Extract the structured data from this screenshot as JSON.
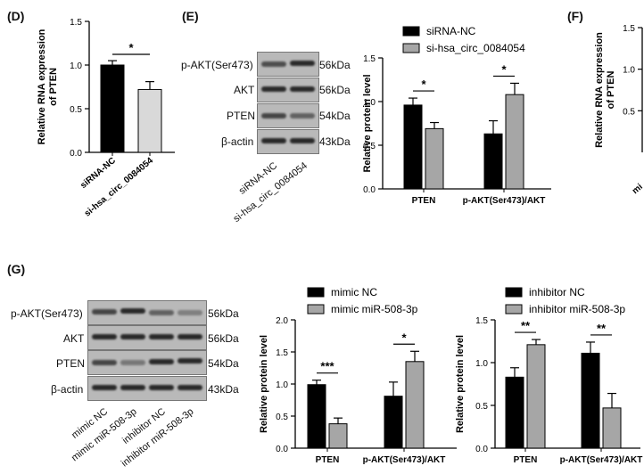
{
  "panels": {
    "D": "(D)",
    "E": "(E)",
    "F": "(F)",
    "G": "(G)"
  },
  "panel_D": {
    "chart_data": {
      "type": "bar",
      "categories": [
        "siRNA-NC",
        "si-hsa_circ_0084054"
      ],
      "values": [
        1.0,
        0.72
      ],
      "errors": [
        0.05,
        0.09
      ],
      "colors": [
        "#000000",
        "#d9d9d9"
      ],
      "ylabel": "Relative RNA expression\nof PTEN",
      "ylabel_lines": [
        "Relative RNA expression",
        "of PTEN"
      ],
      "ylim": [
        0,
        1.5
      ],
      "yticks": [
        "0.0",
        "0.5",
        "1.0",
        "1.5"
      ],
      "annotations": [
        "*"
      ]
    }
  },
  "panel_E": {
    "blot_labels": [
      "p-AKT(Ser473)",
      "AKT",
      "PTEN",
      "β-actin"
    ],
    "kda": [
      "56kDa",
      "56kDa",
      "54kDa",
      "43kDa"
    ],
    "lanes": [
      "siRNA-NC",
      "si-hsa_circ_0084054"
    ],
    "chart_data": {
      "type": "bar",
      "categories": [
        "PTEN",
        "p-AKT(Ser473)/AKT"
      ],
      "series": [
        {
          "name": "siRNA-NC",
          "values": [
            0.96,
            0.63
          ],
          "errors": [
            0.08,
            0.15
          ],
          "color": "#000000"
        },
        {
          "name": "si-hsa_circ_0084054",
          "values": [
            0.69,
            1.08
          ],
          "errors": [
            0.07,
            0.13
          ],
          "color": "#a6a6a6"
        }
      ],
      "ylabel": "Relative protein level",
      "ylim": [
        0,
        1.5
      ],
      "yticks": [
        "0.0",
        "0.5",
        "1.0",
        "1.5"
      ],
      "annotations": [
        "*",
        "*"
      ]
    }
  },
  "panel_F": {
    "chart_data": {
      "type": "bar",
      "ylabel_lines": [
        "Relative RNA expression",
        "of PTEN"
      ],
      "yticks": [
        "0.5",
        "1.0",
        "1.5"
      ],
      "partial_label": "mi"
    }
  },
  "panel_G": {
    "blot_labels": [
      "p-AKT(Ser473)",
      "AKT",
      "PTEN",
      "β-actin"
    ],
    "kda": [
      "56kDa",
      "56kDa",
      "54kDa",
      "43kDa"
    ],
    "lanes": [
      "mimic NC",
      "mimic miR-508-3p",
      "inhibitor NC",
      "inhibitor miR-508-3p"
    ],
    "chart_mimic": {
      "type": "bar",
      "categories": [
        "PTEN",
        "p-AKT(Ser473)/AKT"
      ],
      "series": [
        {
          "name": "mimic NC",
          "values": [
            0.99,
            0.81
          ],
          "errors": [
            0.07,
            0.22
          ],
          "color": "#000000"
        },
        {
          "name": "mimic miR-508-3p",
          "values": [
            0.38,
            1.35
          ],
          "errors": [
            0.09,
            0.16
          ],
          "color": "#a6a6a6"
        }
      ],
      "ylabel": "Relative protein level",
      "ylim": [
        0,
        2.0
      ],
      "yticks": [
        "0.0",
        "0.5",
        "1.0",
        "1.5",
        "2.0"
      ],
      "annotations": [
        "***",
        "*"
      ]
    },
    "chart_inhibitor": {
      "type": "bar",
      "categories": [
        "PTEN",
        "p-AKT(Ser473)/AKT"
      ],
      "series": [
        {
          "name": "inhibitor NC",
          "values": [
            0.83,
            1.11
          ],
          "errors": [
            0.11,
            0.13
          ],
          "color": "#000000"
        },
        {
          "name": "inhibitor miR-508-3p",
          "values": [
            1.21,
            0.47
          ],
          "errors": [
            0.06,
            0.17
          ],
          "color": "#a6a6a6"
        }
      ],
      "ylabel": "Relative protein level",
      "ylim": [
        0,
        1.5
      ],
      "yticks": [
        "0.0",
        "0.5",
        "1.0",
        "1.5"
      ],
      "annotations": [
        "**",
        "**"
      ]
    }
  }
}
